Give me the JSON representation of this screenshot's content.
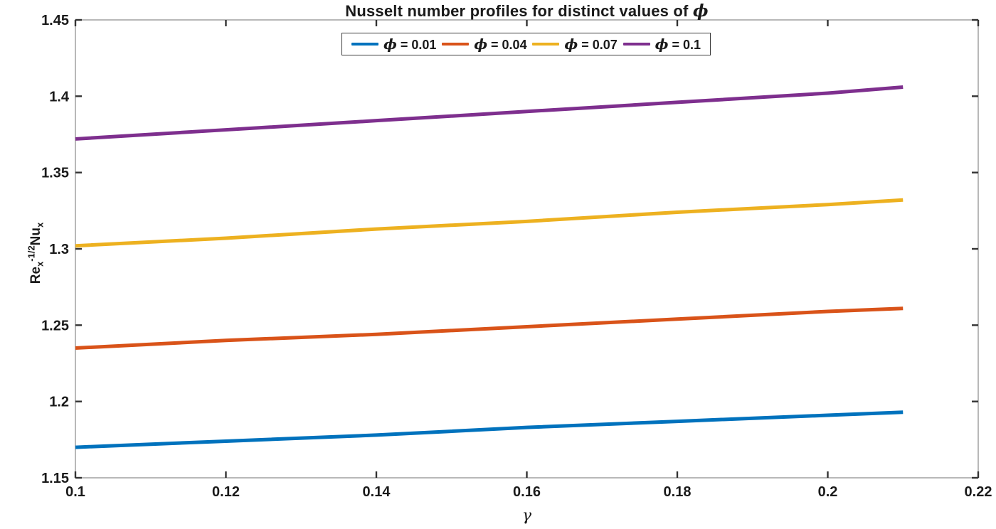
{
  "figure": {
    "background": "#ffffff",
    "title_prefix": "Nusselt number profiles for distinct values of ",
    "title_symbol": "ϕ",
    "x_axis_symbol": "γ",
    "y_axis_label_parts": {
      "base1": "Re",
      "sub1": "x",
      "sup1": "-1/2",
      "base2": "Nu",
      "sub2": "x"
    }
  },
  "legend": {
    "symbol": "ϕ",
    "position": "top-center",
    "orientation": "horizontal",
    "border_color": "#3c3c3c"
  },
  "colors": {
    "axis_box": "#9a9a9a",
    "tick": "#333333",
    "text": "#1a1a1a"
  },
  "chart_data": {
    "type": "line",
    "title": "Nusselt number profiles for distinct values of ϕ",
    "xlabel": "γ",
    "ylabel": "Re_x^{-1/2}Nu_x",
    "xlim": [
      0.1,
      0.22
    ],
    "ylim": [
      1.15,
      1.45
    ],
    "x_ticks": [
      0.1,
      0.12,
      0.14,
      0.16,
      0.18,
      0.2,
      0.22
    ],
    "x_tick_labels": [
      "0.1",
      "0.12",
      "0.14",
      "0.16",
      "0.18",
      "0.2",
      "0.22"
    ],
    "y_ticks": [
      1.15,
      1.2,
      1.25,
      1.3,
      1.35,
      1.4,
      1.45
    ],
    "y_tick_labels": [
      "1.15",
      "1.2",
      "1.25",
      "1.3",
      "1.35",
      "1.4",
      "1.45"
    ],
    "grid": false,
    "legend_position": "top-center",
    "x": [
      0.1,
      0.12,
      0.14,
      0.16,
      0.18,
      0.2,
      0.21
    ],
    "series": [
      {
        "name": "ϕ = 0.01",
        "suffix": " = 0.01",
        "color": "#0072BD",
        "values": [
          1.17,
          1.174,
          1.178,
          1.183,
          1.187,
          1.191,
          1.193
        ]
      },
      {
        "name": "ϕ = 0.04",
        "suffix": " = 0.04",
        "color": "#D95319",
        "values": [
          1.235,
          1.24,
          1.244,
          1.249,
          1.254,
          1.259,
          1.261
        ]
      },
      {
        "name": "ϕ = 0.07",
        "suffix": " = 0.07",
        "color": "#EDB120",
        "values": [
          1.302,
          1.307,
          1.313,
          1.318,
          1.324,
          1.329,
          1.332
        ]
      },
      {
        "name": "ϕ = 0.1",
        "suffix": " = 0.1",
        "color": "#7E2F8E",
        "values": [
          1.372,
          1.378,
          1.384,
          1.39,
          1.396,
          1.402,
          1.406
        ]
      }
    ]
  }
}
